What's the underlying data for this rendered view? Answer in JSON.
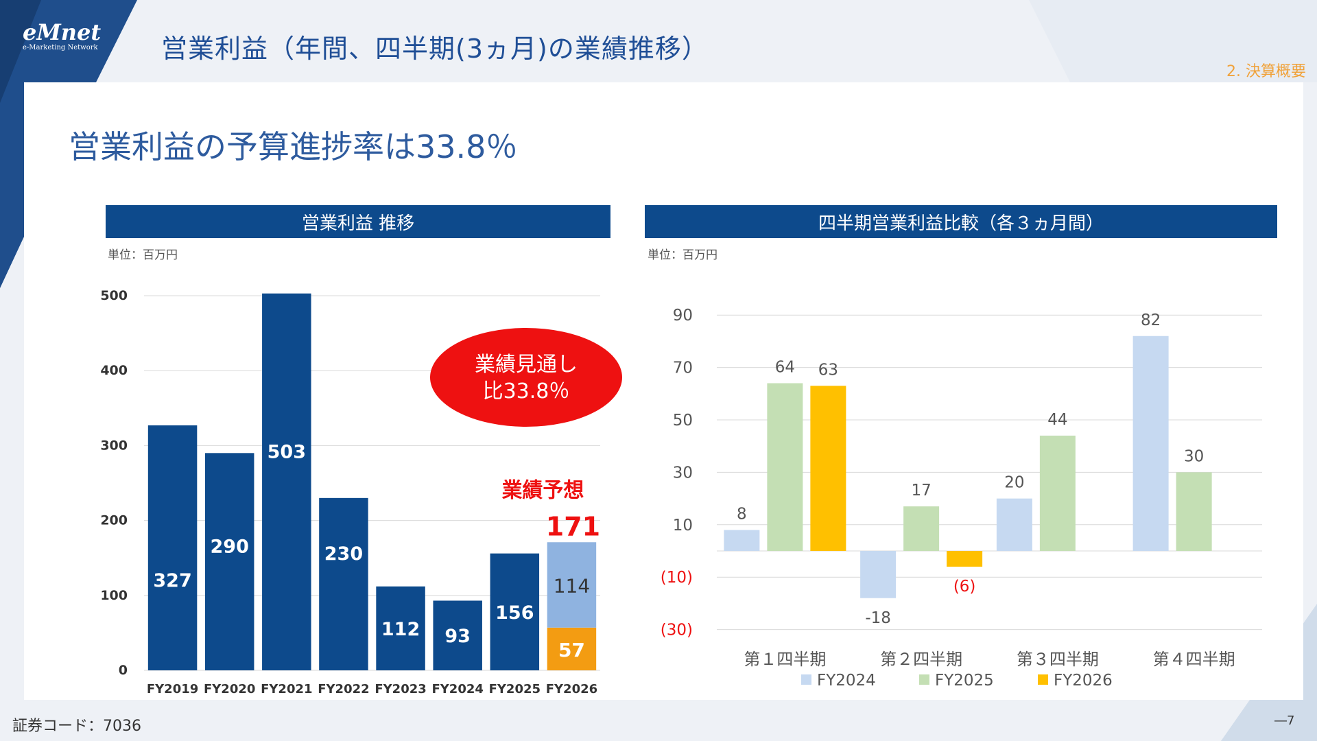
{
  "header": {
    "title": "営業利益（年間、四半期(3ヵ月)の業績推移）",
    "section": "2. 決算概要"
  },
  "logo": {
    "main": "eMnet",
    "sub": "e-Marketing Network"
  },
  "headline": "営業利益の予算進捗率は33.8％",
  "footer": {
    "code": "証券コード：7036",
    "page": "―7"
  },
  "colors": {
    "navy": "#0d4a8c",
    "fy2026_forecast": "#8fb3e0",
    "fy2026_actual": "#f39c12",
    "fy2024": "#c6d9f1",
    "fy2025": "#c4dfb4",
    "fy2026": "#ffc000",
    "bubble": "#ee1111",
    "red_text": "#ee1111"
  },
  "chart_data": [
    {
      "type": "bar",
      "title": "営業利益 推移",
      "unit": "単位：百万円",
      "categories": [
        "FY2019",
        "FY2020",
        "FY2021",
        "FY2022",
        "FY2023",
        "FY2024",
        "FY2025",
        "FY2026"
      ],
      "values": [
        327,
        290,
        503,
        230,
        112,
        93,
        156,
        171
      ],
      "fy2026_breakdown": {
        "actual": 57,
        "remaining": 114,
        "total": 171
      },
      "forecast_label": "業績予想",
      "bubble": [
        "業績見通し",
        "比33.8％"
      ],
      "yticks": [
        "0",
        "100",
        "200",
        "300",
        "400",
        "500"
      ],
      "ylim": [
        0,
        500
      ]
    },
    {
      "type": "bar",
      "title": "四半期営業利益比較（各３ヵ月間）",
      "unit": "単位：百万円",
      "categories": [
        "第１四半期",
        "第２四半期",
        "第３四半期",
        "第４四半期"
      ],
      "yticks": [
        "90",
        "70",
        "50",
        "30",
        "10",
        "(10)",
        "(30)"
      ],
      "ylim": [
        -30,
        90
      ],
      "series": [
        {
          "name": "FY2024",
          "values": [
            8,
            -18,
            20,
            82
          ],
          "labels": [
            "8",
            "-18",
            "20",
            "82"
          ]
        },
        {
          "name": "FY2025",
          "values": [
            64,
            17,
            44,
            30
          ],
          "labels": [
            "64",
            "17",
            "44",
            "30"
          ]
        },
        {
          "name": "FY2026",
          "values": [
            63,
            -6,
            null,
            null
          ],
          "labels": [
            "63",
            "(6)",
            "",
            ""
          ]
        }
      ]
    }
  ]
}
